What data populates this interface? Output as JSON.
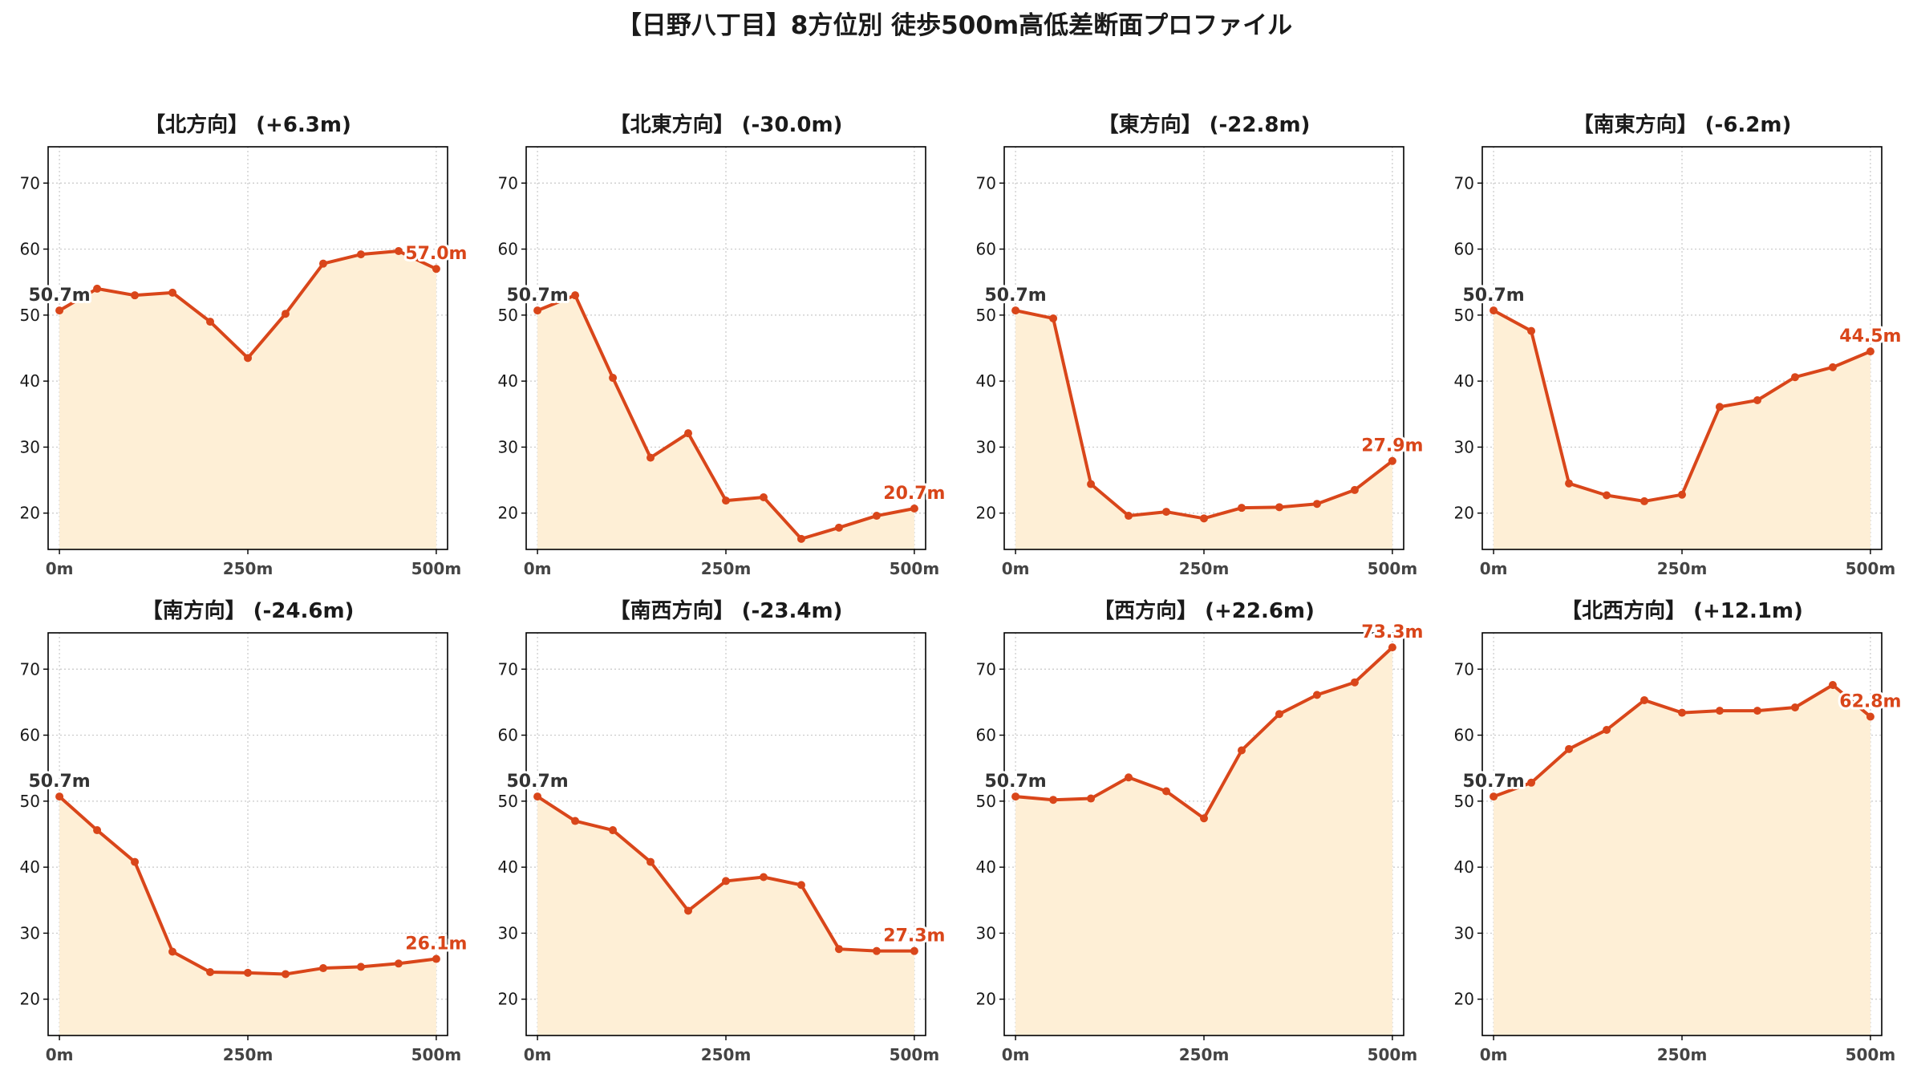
{
  "figure": {
    "title": "【日野八丁目】8方位別 徒歩500m高低差断面プロファイル"
  },
  "colors": {
    "line": "#d9461a",
    "fill": "#feefd6",
    "start_label": "#333333",
    "end_label": "#d9461a",
    "grid": "#c8c8c8"
  },
  "chart_data": [
    {
      "type": "area",
      "title": "【北方向】 (+6.3m)",
      "x": [
        0,
        50,
        100,
        150,
        200,
        250,
        300,
        350,
        400,
        450,
        500
      ],
      "values": [
        50.7,
        54.0,
        53.0,
        53.4,
        49.0,
        43.5,
        50.2,
        57.8,
        59.2,
        59.7,
        57.0
      ],
      "start_label": "50.7m",
      "end_label": "57.0m",
      "xticks": [
        0,
        250,
        500
      ],
      "xtick_labels": [
        "0m",
        "250m",
        "500m"
      ],
      "yticks": [
        20,
        30,
        40,
        50,
        60,
        70
      ],
      "ylim": [
        14.5,
        75.5
      ],
      "xlim": [
        -15,
        515
      ],
      "grid": true
    },
    {
      "type": "area",
      "title": "【北東方向】 (-30.0m)",
      "x": [
        0,
        50,
        100,
        150,
        200,
        250,
        300,
        350,
        400,
        450,
        500
      ],
      "values": [
        50.7,
        53.0,
        40.5,
        28.4,
        32.1,
        21.9,
        22.4,
        16.1,
        17.8,
        19.6,
        20.7
      ],
      "start_label": "50.7m",
      "end_label": "20.7m",
      "xticks": [
        0,
        250,
        500
      ],
      "xtick_labels": [
        "0m",
        "250m",
        "500m"
      ],
      "yticks": [
        20,
        30,
        40,
        50,
        60,
        70
      ],
      "ylim": [
        14.5,
        75.5
      ],
      "xlim": [
        -15,
        515
      ],
      "grid": true
    },
    {
      "type": "area",
      "title": "【東方向】 (-22.8m)",
      "x": [
        0,
        50,
        100,
        150,
        200,
        250,
        300,
        350,
        400,
        450,
        500
      ],
      "values": [
        50.7,
        49.5,
        24.4,
        19.6,
        20.2,
        19.2,
        20.8,
        20.9,
        21.4,
        23.5,
        27.9
      ],
      "start_label": "50.7m",
      "end_label": "27.9m",
      "xticks": [
        0,
        250,
        500
      ],
      "xtick_labels": [
        "0m",
        "250m",
        "500m"
      ],
      "yticks": [
        20,
        30,
        40,
        50,
        60,
        70
      ],
      "ylim": [
        14.5,
        75.5
      ],
      "xlim": [
        -15,
        515
      ],
      "grid": true
    },
    {
      "type": "area",
      "title": "【南東方向】 (-6.2m)",
      "x": [
        0,
        50,
        100,
        150,
        200,
        250,
        300,
        350,
        400,
        450,
        500
      ],
      "values": [
        50.7,
        47.6,
        24.5,
        22.7,
        21.8,
        22.8,
        36.1,
        37.1,
        40.6,
        42.1,
        44.5
      ],
      "start_label": "50.7m",
      "end_label": "44.5m",
      "xticks": [
        0,
        250,
        500
      ],
      "xtick_labels": [
        "0m",
        "250m",
        "500m"
      ],
      "yticks": [
        20,
        30,
        40,
        50,
        60,
        70
      ],
      "ylim": [
        14.5,
        75.5
      ],
      "xlim": [
        -15,
        515
      ],
      "grid": true
    },
    {
      "type": "area",
      "title": "【南方向】 (-24.6m)",
      "x": [
        0,
        50,
        100,
        150,
        200,
        250,
        300,
        350,
        400,
        450,
        500
      ],
      "values": [
        50.7,
        45.6,
        40.8,
        27.2,
        24.1,
        24.0,
        23.8,
        24.7,
        24.9,
        25.4,
        26.1
      ],
      "start_label": "50.7m",
      "end_label": "26.1m",
      "xticks": [
        0,
        250,
        500
      ],
      "xtick_labels": [
        "0m",
        "250m",
        "500m"
      ],
      "yticks": [
        20,
        30,
        40,
        50,
        60,
        70
      ],
      "ylim": [
        14.5,
        75.5
      ],
      "xlim": [
        -15,
        515
      ],
      "grid": true
    },
    {
      "type": "area",
      "title": "【南西方向】 (-23.4m)",
      "x": [
        0,
        50,
        100,
        150,
        200,
        250,
        300,
        350,
        400,
        450,
        500
      ],
      "values": [
        50.7,
        47.0,
        45.6,
        40.8,
        33.4,
        37.9,
        38.5,
        37.3,
        27.6,
        27.3,
        27.3
      ],
      "start_label": "50.7m",
      "end_label": "27.3m",
      "xticks": [
        0,
        250,
        500
      ],
      "xtick_labels": [
        "0m",
        "250m",
        "500m"
      ],
      "yticks": [
        20,
        30,
        40,
        50,
        60,
        70
      ],
      "ylim": [
        14.5,
        75.5
      ],
      "xlim": [
        -15,
        515
      ],
      "grid": true
    },
    {
      "type": "area",
      "title": "【西方向】 (+22.6m)",
      "x": [
        0,
        50,
        100,
        150,
        200,
        250,
        300,
        350,
        400,
        450,
        500
      ],
      "values": [
        50.7,
        50.2,
        50.4,
        53.6,
        51.5,
        47.4,
        57.7,
        63.2,
        66.1,
        68.0,
        73.3
      ],
      "start_label": "50.7m",
      "end_label": "73.3m",
      "xticks": [
        0,
        250,
        500
      ],
      "xtick_labels": [
        "0m",
        "250m",
        "500m"
      ],
      "yticks": [
        20,
        30,
        40,
        50,
        60,
        70
      ],
      "ylim": [
        14.5,
        75.5
      ],
      "xlim": [
        -15,
        515
      ],
      "grid": true
    },
    {
      "type": "area",
      "title": "【北西方向】 (+12.1m)",
      "x": [
        0,
        50,
        100,
        150,
        200,
        250,
        300,
        350,
        400,
        450,
        500
      ],
      "values": [
        50.7,
        52.8,
        57.9,
        60.8,
        65.3,
        63.4,
        63.7,
        63.7,
        64.2,
        67.6,
        62.8
      ],
      "start_label": "50.7m",
      "end_label": "62.8m",
      "xticks": [
        0,
        250,
        500
      ],
      "xtick_labels": [
        "0m",
        "250m",
        "500m"
      ],
      "yticks": [
        20,
        30,
        40,
        50,
        60,
        70
      ],
      "ylim": [
        14.5,
        75.5
      ],
      "xlim": [
        -15,
        515
      ],
      "grid": true
    }
  ]
}
